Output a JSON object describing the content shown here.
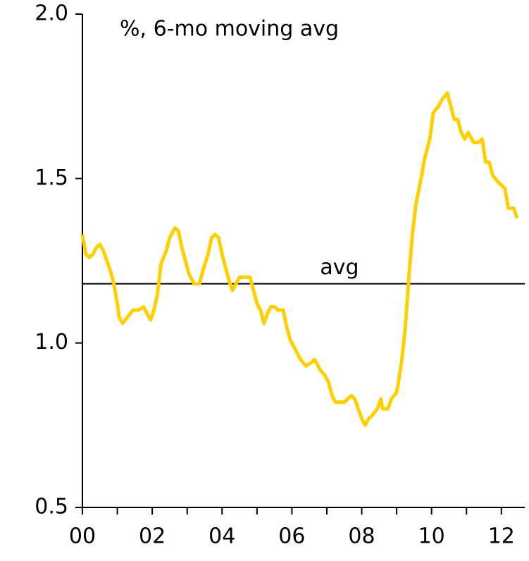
{
  "chart_data": {
    "type": "line",
    "title": "%, 6-mo moving avg",
    "x": [
      0.0,
      0.1,
      0.2,
      0.3,
      0.4,
      0.5,
      0.6,
      0.7,
      0.8,
      0.9,
      1.0,
      1.05,
      1.15,
      1.3,
      1.45,
      1.6,
      1.75,
      1.85,
      1.95,
      2.05,
      2.15,
      2.25,
      2.4,
      2.5,
      2.65,
      2.75,
      2.85,
      2.95,
      3.05,
      3.2,
      3.35,
      3.45,
      3.6,
      3.7,
      3.8,
      3.9,
      4.0,
      4.1,
      4.2,
      4.3,
      4.4,
      4.5,
      4.65,
      4.8,
      4.9,
      5.0,
      5.1,
      5.2,
      5.3,
      5.4,
      5.5,
      5.6,
      5.75,
      5.85,
      5.95,
      6.1,
      6.25,
      6.4,
      6.55,
      6.65,
      6.8,
      6.95,
      7.05,
      7.15,
      7.25,
      7.35,
      7.5,
      7.6,
      7.7,
      7.8,
      7.9,
      8.0,
      8.1,
      8.2,
      8.3,
      8.45,
      8.55,
      8.6,
      8.75,
      8.85,
      9.0,
      9.05,
      9.15,
      9.25,
      9.35,
      9.45,
      9.55,
      9.7,
      9.8,
      9.95,
      10.05,
      10.2,
      10.3,
      10.45,
      10.55,
      10.65,
      10.75,
      10.85,
      10.95,
      11.05,
      11.2,
      11.35,
      11.45,
      11.55,
      11.65,
      11.75,
      11.9,
      12.0,
      12.1,
      12.2,
      12.35,
      12.45
    ],
    "series": [
      {
        "color": "#ffd000",
        "values": [
          1.33,
          1.27,
          1.26,
          1.27,
          1.29,
          1.3,
          1.28,
          1.25,
          1.22,
          1.18,
          1.12,
          1.08,
          1.06,
          1.08,
          1.1,
          1.1,
          1.11,
          1.09,
          1.07,
          1.1,
          1.15,
          1.24,
          1.28,
          1.32,
          1.35,
          1.34,
          1.29,
          1.25,
          1.21,
          1.18,
          1.18,
          1.22,
          1.27,
          1.32,
          1.33,
          1.32,
          1.27,
          1.23,
          1.19,
          1.16,
          1.18,
          1.2,
          1.2,
          1.2,
          1.16,
          1.12,
          1.1,
          1.06,
          1.09,
          1.11,
          1.11,
          1.1,
          1.1,
          1.05,
          1.01,
          0.98,
          0.95,
          0.93,
          0.94,
          0.95,
          0.92,
          0.9,
          0.88,
          0.84,
          0.82,
          0.82,
          0.82,
          0.83,
          0.84,
          0.83,
          0.8,
          0.77,
          0.75,
          0.77,
          0.78,
          0.8,
          0.83,
          0.8,
          0.8,
          0.83,
          0.85,
          0.88,
          0.95,
          1.05,
          1.2,
          1.33,
          1.42,
          1.5,
          1.56,
          1.62,
          1.7,
          1.72,
          1.74,
          1.76,
          1.72,
          1.68,
          1.68,
          1.64,
          1.62,
          1.64,
          1.61,
          1.61,
          1.62,
          1.55,
          1.55,
          1.51,
          1.49,
          1.48,
          1.47,
          1.41,
          1.41,
          1.38
        ]
      }
    ],
    "xlim": [
      0,
      12.67
    ],
    "xticks": [
      {
        "value": 0,
        "label": "00"
      },
      {
        "value": 2,
        "label": "02"
      },
      {
        "value": 4,
        "label": "04"
      },
      {
        "value": 6,
        "label": "06"
      },
      {
        "value": 8,
        "label": "08"
      },
      {
        "value": 10,
        "label": "10"
      },
      {
        "value": 12,
        "label": "12"
      }
    ],
    "x_minor_ticks": [
      1,
      3,
      5,
      7,
      9,
      11
    ],
    "ylim": [
      0.5,
      2.0
    ],
    "yticks": [
      {
        "value": 0.5,
        "label": "0.5"
      },
      {
        "value": 1.0,
        "label": "1.0"
      },
      {
        "value": 1.5,
        "label": "1.5"
      },
      {
        "value": 2.0,
        "label": "2.0"
      }
    ],
    "reference_line": {
      "value": 1.18,
      "label": "avg"
    }
  }
}
